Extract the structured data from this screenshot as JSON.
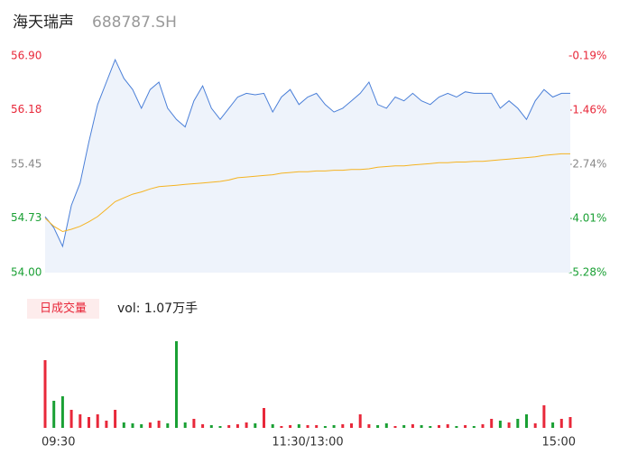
{
  "title": "海天瑞声",
  "code": "688787.SH",
  "chart_data": {
    "type": "line",
    "xlim": [
      0,
      240
    ],
    "xticks": [
      {
        "value": 0,
        "label": "09:30"
      },
      {
        "value": 120,
        "label": "11:30/13:00"
      },
      {
        "value": 240,
        "label": "15:00"
      }
    ],
    "x": [
      0,
      4,
      8,
      12,
      16,
      20,
      24,
      28,
      32,
      36,
      40,
      44,
      48,
      52,
      56,
      60,
      64,
      68,
      72,
      76,
      80,
      84,
      88,
      92,
      96,
      100,
      104,
      108,
      112,
      116,
      120,
      124,
      128,
      132,
      136,
      140,
      144,
      148,
      152,
      156,
      160,
      164,
      168,
      172,
      176,
      180,
      184,
      188,
      192,
      196,
      200,
      204,
      208,
      212,
      216,
      220,
      224,
      228,
      232,
      236,
      240
    ],
    "ylim": [
      54,
      56.9
    ],
    "yticks": [
      {
        "value": 54,
        "label": "54.00"
      },
      54.73,
      55.45,
      56.18,
      {
        "value": 56.9,
        "label": "56.90"
      }
    ],
    "y2lim": [
      -5.28,
      -0.19
    ],
    "y2ticks": [
      {
        "value": -5.28,
        "label": "-5.28%"
      },
      {
        "value": -4.01,
        "label": "-4.01%"
      },
      {
        "value": -2.74,
        "label": "-2.74%"
      },
      {
        "value": -1.46,
        "label": "-1.46%"
      },
      {
        "value": -0.19,
        "label": "-0.19%"
      }
    ],
    "up_color": "#e8283a",
    "down_color": "#1aa034",
    "flat_color": "#888888",
    "series": [
      {
        "color": "#4a7fd8",
        "fill": "#eef3fb",
        "values": [
          54.75,
          54.6,
          54.35,
          54.9,
          55.2,
          55.75,
          56.25,
          56.55,
          56.85,
          56.6,
          56.45,
          56.2,
          56.45,
          56.55,
          56.2,
          56.05,
          55.95,
          56.3,
          56.5,
          56.2,
          56.05,
          56.2,
          56.35,
          56.4,
          56.38,
          56.4,
          56.15,
          56.35,
          56.45,
          56.25,
          56.35,
          56.4,
          56.25,
          56.15,
          56.2,
          56.3,
          56.4,
          56.55,
          56.25,
          56.2,
          56.35,
          56.3,
          56.4,
          56.3,
          56.25,
          56.35,
          56.4,
          56.35,
          56.42,
          56.4,
          56.4,
          56.4,
          56.2,
          56.3,
          56.2,
          56.05,
          56.3,
          56.45,
          56.35,
          56.4,
          56.4
        ]
      },
      {
        "color": "#f5b321",
        "values": [
          54.73,
          54.62,
          54.55,
          54.58,
          54.62,
          54.68,
          54.75,
          54.85,
          54.95,
          55.0,
          55.05,
          55.08,
          55.12,
          55.15,
          55.16,
          55.17,
          55.18,
          55.19,
          55.2,
          55.21,
          55.22,
          55.24,
          55.27,
          55.28,
          55.29,
          55.3,
          55.31,
          55.33,
          55.34,
          55.35,
          55.35,
          55.36,
          55.36,
          55.37,
          55.37,
          55.38,
          55.38,
          55.39,
          55.41,
          55.42,
          55.43,
          55.43,
          55.44,
          55.45,
          55.46,
          55.47,
          55.47,
          55.48,
          55.48,
          55.49,
          55.49,
          55.5,
          55.51,
          55.52,
          55.53,
          55.54,
          55.55,
          55.57,
          55.58,
          55.59,
          55.59
        ]
      }
    ],
    "volume": {
      "label": "日成交量",
      "summary": "vol: 1.07万手",
      "values": [
        1275,
        510,
        595,
        340,
        255,
        204,
        255,
        136,
        340,
        102,
        85,
        68,
        102,
        136,
        85,
        1632,
        102,
        170,
        68,
        51,
        34,
        51,
        68,
        102,
        85,
        374,
        68,
        34,
        51,
        68,
        51,
        51,
        34,
        51,
        68,
        85,
        255,
        68,
        51,
        85,
        34,
        51,
        68,
        51,
        34,
        51,
        68,
        34,
        51,
        34,
        68,
        170,
        136,
        102,
        170,
        255,
        85,
        425,
        102,
        170,
        204
      ]
    }
  }
}
